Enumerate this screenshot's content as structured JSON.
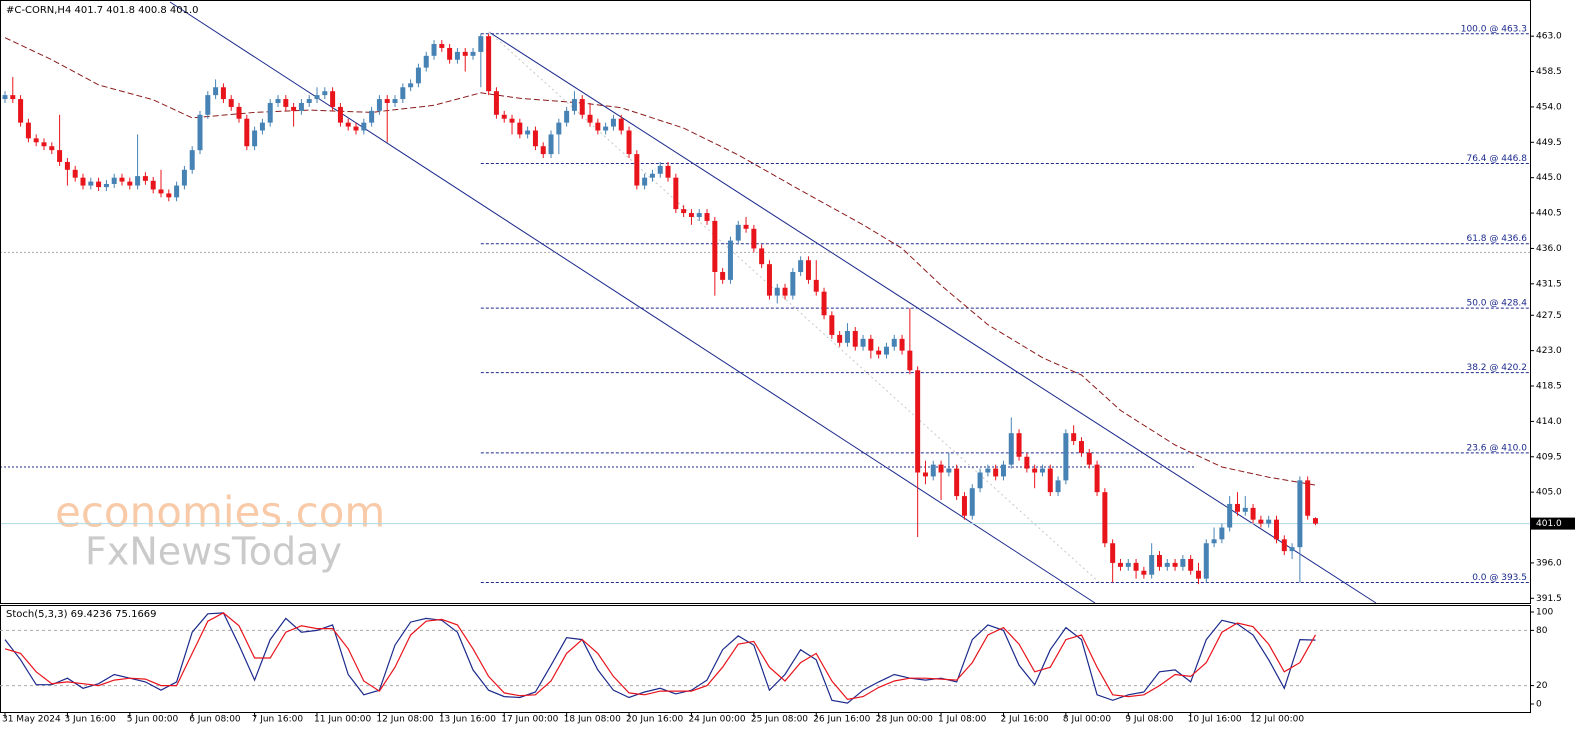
{
  "chart_data": {
    "type": "candlestick",
    "title": "#C-CORN,H4 401.7 401.8 400.8 401.0",
    "watermark": [
      "economies.com",
      "FxNewsToday"
    ],
    "up_color": "#4682b4",
    "down_color": "#e8141c",
    "xlim": [
      -0.64,
      195.5
    ],
    "ylim": [
      390.9,
      467.6
    ],
    "yticks": [
      {
        "value": 463,
        "label": "463.0"
      },
      {
        "value": 458.5,
        "label": "458.5"
      },
      {
        "value": 454,
        "label": "454.0"
      },
      {
        "value": 449.5,
        "label": "449.5"
      },
      {
        "value": 445,
        "label": "445.0"
      },
      {
        "value": 440.5,
        "label": "440.5"
      },
      {
        "value": 436,
        "label": "436.0"
      },
      {
        "value": 431.5,
        "label": "431.5"
      },
      {
        "value": 427.5,
        "label": "427.5"
      },
      {
        "value": 423,
        "label": "423.0"
      },
      {
        "value": 418.5,
        "label": "418.5"
      },
      {
        "value": 414,
        "label": "414.0"
      },
      {
        "value": 409.5,
        "label": "409.5"
      },
      {
        "value": 405,
        "label": "405.0"
      },
      {
        "value": 396,
        "label": "396.0"
      },
      {
        "value": 391.5,
        "label": "391.5"
      }
    ],
    "xticks": [
      {
        "value": 0,
        "label": "31 May 2024"
      },
      {
        "value": 8,
        "label": "3 Jun 16:00"
      },
      {
        "value": 16,
        "label": "5 Jun 00:00"
      },
      {
        "value": 24,
        "label": "6 Jun 08:00"
      },
      {
        "value": 32,
        "label": "7 Jun 16:00"
      },
      {
        "value": 40,
        "label": "11 Jun 00:00"
      },
      {
        "value": 48,
        "label": "12 Jun 08:00"
      },
      {
        "value": 56,
        "label": "13 Jun 16:00"
      },
      {
        "value": 64,
        "label": "17 Jun 00:00"
      },
      {
        "value": 72,
        "label": "18 Jun 08:00"
      },
      {
        "value": 80,
        "label": "20 Jun 16:00"
      },
      {
        "value": 88,
        "label": "24 Jun 00:00"
      },
      {
        "value": 96,
        "label": "25 Jun 08:00"
      },
      {
        "value": 104,
        "label": "26 Jun 16:00"
      },
      {
        "value": 112,
        "label": "28 Jun 00:00"
      },
      {
        "value": 120,
        "label": "1 Jul 08:00"
      },
      {
        "value": 128,
        "label": "2 Jul 16:00"
      },
      {
        "value": 136,
        "label": "8 Jul 00:00"
      },
      {
        "value": 144,
        "label": "9 Jul 08:00"
      },
      {
        "value": 152,
        "label": "10 Jul 16:00"
      },
      {
        "value": 160,
        "label": "12 Jul 00:00"
      }
    ],
    "open": [
      455.0,
      455.5,
      455.0,
      452.0,
      450.0,
      449.5,
      449.0,
      448.5,
      447.0,
      446.0,
      445.0,
      444.0,
      444.5,
      443.8,
      444.2,
      445.0,
      444.5,
      444.0,
      445.2,
      444.6,
      443.5,
      443.0,
      442.5,
      444.0,
      446.0,
      448.5,
      453.0,
      455.5,
      456.5,
      455.0,
      454.0,
      452.5,
      449.0,
      451.0,
      452.0,
      454.5,
      455.0,
      454.0,
      453.5,
      454.5,
      455.0,
      455.5,
      456.0,
      454.0,
      452.0,
      451.5,
      451.0,
      452.0,
      453.5,
      455.0,
      454.5,
      455.0,
      456.5,
      457.0,
      459.0,
      460.5,
      462.0,
      461.5,
      460.0,
      461.0,
      460.5,
      461.0,
      463.0,
      456.0,
      453.0,
      452.5,
      452.0,
      450.5,
      451.0,
      449.0,
      448.0,
      450.5,
      452.0,
      453.5,
      455.0,
      453.0,
      452.0,
      451.0,
      451.5,
      452.5,
      451.0,
      448.0,
      444.0,
      445.0,
      445.5,
      446.5,
      445.0,
      441.0,
      440.5,
      440.0,
      440.5,
      439.5,
      433.0,
      432.0,
      437.0,
      439.0,
      438.5,
      436.0,
      434.0,
      430.0,
      431.0,
      430.0,
      433.0,
      434.5,
      432.0,
      430.5,
      427.5,
      425.0,
      424.0,
      425.5,
      423.5,
      424.5,
      423.0,
      422.5,
      423.5,
      424.5,
      423.0,
      420.5,
      407.5,
      407.0,
      408.5,
      407.5,
      408.0,
      404.5,
      402.0,
      405.5,
      407.5,
      408.0,
      407.0,
      408.5,
      412.5,
      409.5,
      408.0,
      407.5,
      408.0,
      405.0,
      406.5,
      412.5,
      411.5,
      410.0,
      408.5,
      405.0,
      398.5,
      396.0,
      395.5,
      396.0,
      395.0,
      394.5,
      397.0,
      395.5,
      396.0,
      395.5,
      396.5,
      395.0,
      394.0,
      398.5,
      399.0,
      400.5,
      403.5,
      402.5,
      403.0,
      401.5,
      401.0,
      401.5,
      399.0,
      397.5,
      398.0,
      406.5,
      401.7
    ],
    "high": [
      456.0,
      457.8,
      455.5,
      452.5,
      450.5,
      450.0,
      449.5,
      453.0,
      447.5,
      446.5,
      445.5,
      445.0,
      445.0,
      444.7,
      445.5,
      445.5,
      445.0,
      450.5,
      445.7,
      445.1,
      446.0,
      443.5,
      444.5,
      446.5,
      449.0,
      453.5,
      456.0,
      457.5,
      457.0,
      455.5,
      454.5,
      453.0,
      451.5,
      452.5,
      455.0,
      455.5,
      455.5,
      454.5,
      455.0,
      455.5,
      456.5,
      456.5,
      456.5,
      454.5,
      452.5,
      452.0,
      452.5,
      454.0,
      455.5,
      455.5,
      455.5,
      457.0,
      457.5,
      459.5,
      461.0,
      462.5,
      462.5,
      462.0,
      461.5,
      461.5,
      461.5,
      463.3,
      463.3,
      456.5,
      453.5,
      453.0,
      452.5,
      451.5,
      451.5,
      449.5,
      451.0,
      452.5,
      454.0,
      456.0,
      455.5,
      454.5,
      452.5,
      452.0,
      453.0,
      453.0,
      451.5,
      448.5,
      445.5,
      446.0,
      447.0,
      447.0,
      445.5,
      441.5,
      441.0,
      441.0,
      441.0,
      440.0,
      433.5,
      437.5,
      439.5,
      440.0,
      439.0,
      436.5,
      434.5,
      431.5,
      431.5,
      433.5,
      435.0,
      435.0,
      434.5,
      431.0,
      428.0,
      425.5,
      426.5,
      426.0,
      425.0,
      425.0,
      423.5,
      424.0,
      425.0,
      425.0,
      428.4,
      421.0,
      409.0,
      409.0,
      409.0,
      410.0,
      408.5,
      405.0,
      406.0,
      408.0,
      408.5,
      408.5,
      409.0,
      414.5,
      413.0,
      410.0,
      408.5,
      408.5,
      408.5,
      407.0,
      413.0,
      413.5,
      412.0,
      410.5,
      409.0,
      405.5,
      399.0,
      396.5,
      396.5,
      396.5,
      395.5,
      398.5,
      397.5,
      396.5,
      396.5,
      397.0,
      397.0,
      396.0,
      399.0,
      400.5,
      401.0,
      404.5,
      405.0,
      404.5,
      403.5,
      402.0,
      402.0,
      402.0,
      399.5,
      398.5,
      407.0,
      407.0,
      401.8
    ],
    "low": [
      454.5,
      454.5,
      451.5,
      449.5,
      449.0,
      448.5,
      448.0,
      446.5,
      444.0,
      444.5,
      443.5,
      443.5,
      443.3,
      443.3,
      443.7,
      444.0,
      443.5,
      443.5,
      444.1,
      443.0,
      442.5,
      442.0,
      442.0,
      443.5,
      445.5,
      448.0,
      452.5,
      455.0,
      454.5,
      453.5,
      452.0,
      448.5,
      448.5,
      450.5,
      451.5,
      454.0,
      453.5,
      451.5,
      453.0,
      454.0,
      454.5,
      455.0,
      453.5,
      451.5,
      451.0,
      450.5,
      450.5,
      451.5,
      453.0,
      449.5,
      454.0,
      454.5,
      456.0,
      456.5,
      458.5,
      460.0,
      461.0,
      459.5,
      459.5,
      458.5,
      460.0,
      456.5,
      455.5,
      452.5,
      452.0,
      450.5,
      450.0,
      450.0,
      448.5,
      447.5,
      447.5,
      448.0,
      451.5,
      453.0,
      452.5,
      451.5,
      450.5,
      450.5,
      451.0,
      450.5,
      447.5,
      443.5,
      443.5,
      444.5,
      445.0,
      444.5,
      440.5,
      440.0,
      439.0,
      439.5,
      439.0,
      430.0,
      431.5,
      431.5,
      436.5,
      438.0,
      435.5,
      433.5,
      429.5,
      429.0,
      429.5,
      429.5,
      432.5,
      431.5,
      430.0,
      427.0,
      424.5,
      423.5,
      423.5,
      423.0,
      423.0,
      422.0,
      422.0,
      422.0,
      423.0,
      422.5,
      420.0,
      399.3,
      406.0,
      406.5,
      404.0,
      407.0,
      404.0,
      401.5,
      401.5,
      405.0,
      407.0,
      406.5,
      406.5,
      408.0,
      409.0,
      407.5,
      405.5,
      407.0,
      404.5,
      404.5,
      406.0,
      411.0,
      409.5,
      408.0,
      404.5,
      398.0,
      393.5,
      395.0,
      395.0,
      394.0,
      394.0,
      394.0,
      395.0,
      395.0,
      395.0,
      395.0,
      394.5,
      393.3,
      393.5,
      398.0,
      398.5,
      400.0,
      402.0,
      402.0,
      401.0,
      400.5,
      400.5,
      398.5,
      397.0,
      396.5,
      393.5,
      401.5,
      400.8
    ],
    "close": [
      455.5,
      455.0,
      452.0,
      450.0,
      449.5,
      449.0,
      448.5,
      447.0,
      446.0,
      445.0,
      444.0,
      444.5,
      443.8,
      444.2,
      445.0,
      444.5,
      444.0,
      445.2,
      444.6,
      443.5,
      443.0,
      442.5,
      444.0,
      446.0,
      448.5,
      453.0,
      455.5,
      456.5,
      455.0,
      454.0,
      452.5,
      449.0,
      451.0,
      452.0,
      454.5,
      455.0,
      454.0,
      453.5,
      454.5,
      455.0,
      455.5,
      456.0,
      454.0,
      452.0,
      451.5,
      451.0,
      452.0,
      453.5,
      455.0,
      454.5,
      455.0,
      456.5,
      457.0,
      459.0,
      460.5,
      462.0,
      461.5,
      460.0,
      461.0,
      460.5,
      461.0,
      463.0,
      456.0,
      453.0,
      452.5,
      452.0,
      450.5,
      451.0,
      449.0,
      448.0,
      450.5,
      452.0,
      453.5,
      455.0,
      453.0,
      452.0,
      451.0,
      451.5,
      452.5,
      451.0,
      448.0,
      444.0,
      445.0,
      445.5,
      446.5,
      445.0,
      441.0,
      440.5,
      440.0,
      440.5,
      439.5,
      433.0,
      432.0,
      437.0,
      439.0,
      438.5,
      436.0,
      434.0,
      430.0,
      431.0,
      430.0,
      433.0,
      434.5,
      432.0,
      430.5,
      427.5,
      425.0,
      424.0,
      425.5,
      423.5,
      424.5,
      423.0,
      422.5,
      423.5,
      424.5,
      423.0,
      420.5,
      407.5,
      407.0,
      408.5,
      407.5,
      408.0,
      404.5,
      402.0,
      405.5,
      407.5,
      408.0,
      407.0,
      408.5,
      412.5,
      409.5,
      408.0,
      407.5,
      408.0,
      405.0,
      406.5,
      412.5,
      411.5,
      410.0,
      408.5,
      405.0,
      398.5,
      396.0,
      395.5,
      396.0,
      395.0,
      394.5,
      397.0,
      395.5,
      396.0,
      395.5,
      396.5,
      395.0,
      394.0,
      398.5,
      399.0,
      400.5,
      403.5,
      402.5,
      403.0,
      401.5,
      401.0,
      401.5,
      399.0,
      397.5,
      398.0,
      406.5,
      402.0,
      401.0
    ],
    "moving_average": {
      "color": "#8b1a1a",
      "x": [
        0,
        6,
        12,
        19,
        24,
        32,
        39,
        47,
        55,
        61,
        66,
        74,
        79,
        87,
        94,
        102,
        110,
        115,
        120,
        126,
        133,
        138,
        143,
        150,
        156,
        162,
        168
      ],
      "values": [
        462.8,
        460.0,
        456.8,
        454.9,
        452.6,
        453.3,
        453.6,
        453.3,
        454.2,
        455.8,
        455.1,
        454.5,
        453.9,
        451.3,
        447.9,
        443.4,
        439.0,
        436.0,
        431.3,
        426.3,
        422.1,
        419.9,
        415.4,
        411.0,
        408.2,
        406.9,
        405.9
      ]
    },
    "fibonacci": {
      "color": "#1c2a8c",
      "from": 61,
      "levels": [
        {
          "value": 463.3,
          "label": "100.0 @ 463.3"
        },
        {
          "value": 446.8,
          "label": "76.4 @ 446.8"
        },
        {
          "value": 436.6,
          "label": "61.8 @ 436.6"
        },
        {
          "value": 428.4,
          "label": "50.0 @ 428.4"
        },
        {
          "value": 420.2,
          "label": "38.2 @ 420.2"
        },
        {
          "value": 410.0,
          "label": "23.6 @ 410.0"
        },
        {
          "value": 393.5,
          "label": "0.0 @ 393.5"
        }
      ]
    },
    "horizontal_lines": [
      {
        "value": 408.2,
        "color": "#1c2a8c",
        "x": [
          -0.64,
          152.7
        ]
      },
      {
        "value": 435.5,
        "color": "#a9a9a9",
        "x": [
          -0.64,
          195.5
        ]
      }
    ],
    "current_price": {
      "value": 401.0,
      "label": "401.0",
      "color": "#add8e6"
    },
    "stochastic": {
      "title": "Stoch(5,3,3) 69.4236 75.1669",
      "ylim": [
        -9.8,
        107.6
      ],
      "yticks": [
        100,
        80,
        20,
        0
      ],
      "levels": [
        80,
        20
      ],
      "x": [
        0,
        2,
        4,
        6,
        8,
        10,
        12,
        14,
        16,
        18,
        20,
        22,
        24,
        26,
        28,
        30,
        32,
        34,
        36,
        38,
        40,
        42,
        44,
        46,
        48,
        50,
        52,
        54,
        56,
        58,
        60,
        62,
        64,
        66,
        68,
        70,
        72,
        74,
        76,
        78,
        80,
        82,
        84,
        86,
        88,
        90,
        92,
        94,
        96,
        98,
        100,
        102,
        104,
        106,
        108,
        110,
        112,
        114,
        116,
        118,
        120,
        122,
        124,
        126,
        128,
        130,
        132,
        134,
        136,
        138,
        140,
        142,
        144,
        146,
        148,
        150,
        152,
        154,
        156,
        158,
        160,
        162,
        164,
        166,
        168
      ],
      "series": [
        {
          "color": "#1c2a8c",
          "values": [
            70,
            48,
            21,
            21,
            28,
            17,
            22,
            32,
            28,
            24,
            15,
            24,
            78,
            98,
            99,
            64,
            26,
            70,
            93,
            78,
            80,
            86,
            32,
            10,
            15,
            64,
            89,
            93,
            91,
            78,
            37,
            15,
            8,
            7,
            13,
            42,
            72,
            70,
            37,
            15,
            7,
            13,
            17,
            11,
            15,
            26,
            59,
            74,
            64,
            15,
            32,
            59,
            48,
            4,
            1,
            15,
            24,
            32,
            28,
            26,
            28,
            24,
            70,
            86,
            80,
            42,
            21,
            59,
            83,
            70,
            10,
            4,
            10,
            13,
            35,
            37,
            24,
            70,
            91,
            87,
            75,
            48,
            17,
            70,
            69.4
          ]
        },
        {
          "color": "#e8141c",
          "values": [
            60,
            55,
            35,
            22,
            24,
            22,
            20,
            26,
            28,
            27,
            20,
            20,
            55,
            90,
            99,
            85,
            50,
            50,
            78,
            85,
            82,
            82,
            60,
            25,
            14,
            40,
            75,
            90,
            92,
            86,
            60,
            30,
            12,
            9,
            10,
            25,
            55,
            70,
            55,
            30,
            12,
            10,
            14,
            14,
            14,
            20,
            40,
            65,
            68,
            40,
            25,
            45,
            55,
            25,
            5,
            8,
            18,
            25,
            28,
            28,
            27,
            26,
            45,
            75,
            83,
            65,
            35,
            40,
            70,
            75,
            40,
            10,
            8,
            10,
            20,
            32,
            30,
            45,
            78,
            88,
            84,
            65,
            35,
            45,
            75.2
          ]
        }
      ]
    }
  }
}
